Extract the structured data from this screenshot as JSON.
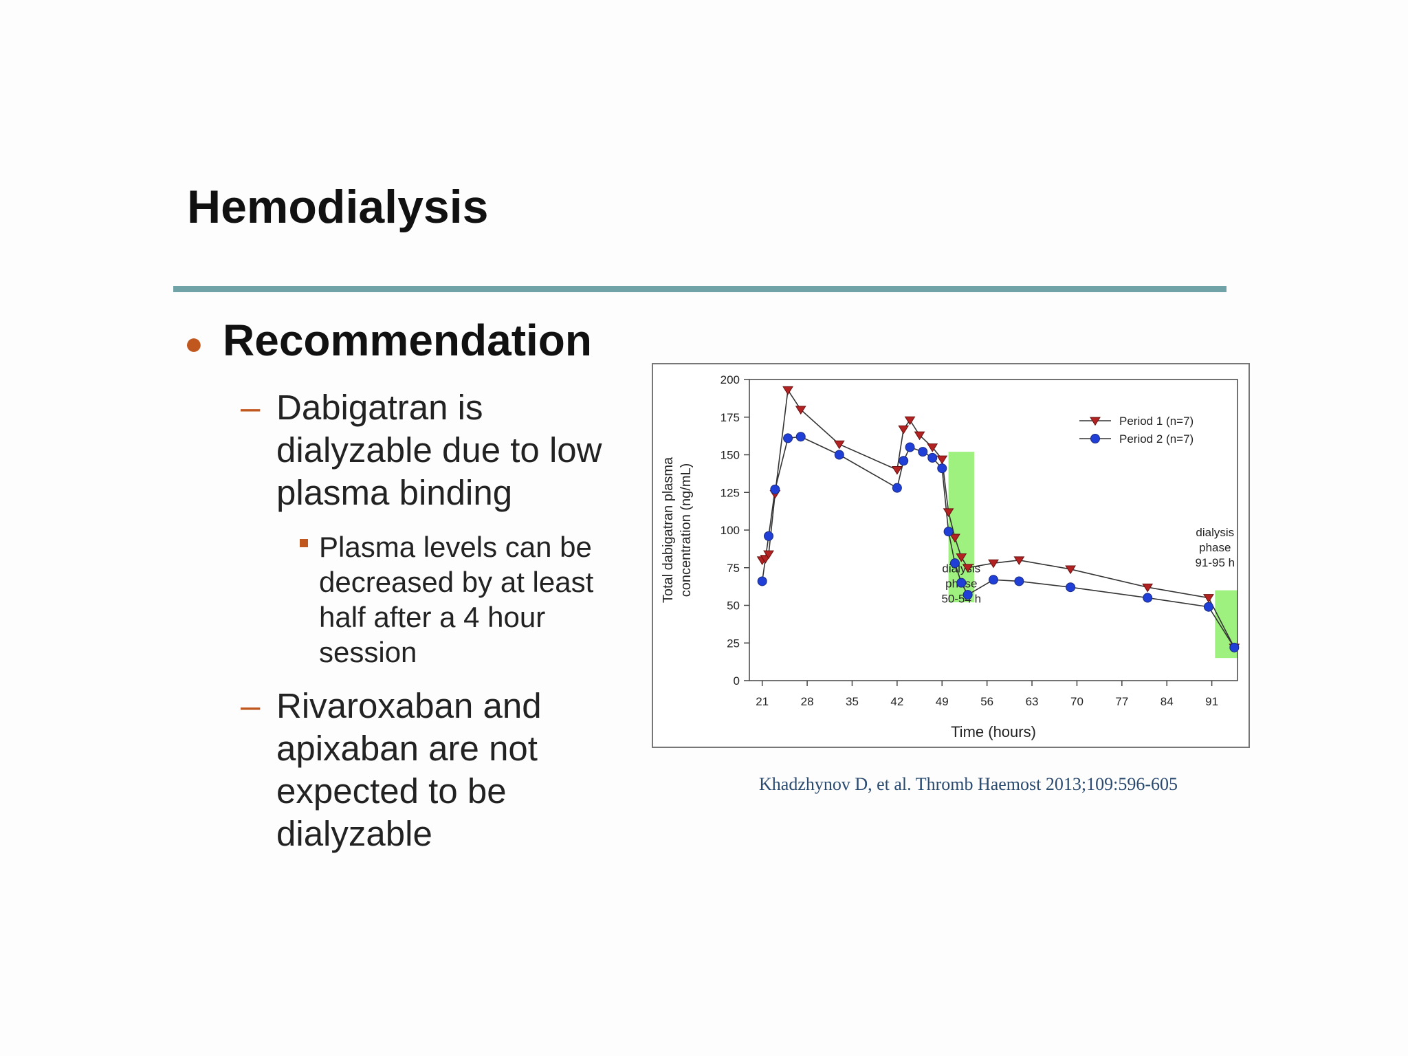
{
  "slide": {
    "title": "Hemodialysis",
    "bullet": "Recommendation",
    "item1_lines": [
      "Dabigatran  is",
      "dialyzable  due to low",
      "plasma binding"
    ],
    "sub_lines": [
      "Plasma levels can be",
      "decreased by at least",
      "half after a 4 hour",
      "session"
    ],
    "item2_lines": [
      "Rivaroxaban  and",
      "apixaban  are not",
      "expected  to be",
      "dialyzable"
    ],
    "citation": "Khadzhynov D, et al. Thromb Haemost 2013;109:596-605",
    "colors": {
      "rule": "#6fa3a8",
      "bullet": "#c0571f",
      "dialysis_band": "#9ef07f"
    }
  },
  "chart_data": {
    "type": "line",
    "xlabel": "Time (hours)",
    "ylabel_lines": [
      "Total dabigatran plasma",
      "concentration (ng/mL)"
    ],
    "xticks": [
      21,
      28,
      35,
      42,
      49,
      56,
      63,
      70,
      77,
      84,
      91
    ],
    "yticks": [
      0,
      25,
      50,
      75,
      100,
      125,
      150,
      175,
      200
    ],
    "xlim": [
      19,
      95
    ],
    "ylim": [
      0,
      200
    ],
    "legend_position": "top-right",
    "bands": [
      {
        "x0": 50,
        "x1": 54,
        "y0": 52,
        "y1": 152,
        "label_lines": [
          "dialysis",
          "phase",
          "50-54 h"
        ]
      },
      {
        "x0": 91.5,
        "x1": 95,
        "y0": 15,
        "y1": 60,
        "label_lines": [
          "dialysis",
          "phase",
          "91-95 h"
        ]
      }
    ],
    "series": [
      {
        "name": "Period 1 (n=7)",
        "color": "#b22222",
        "marker": "triangle-down",
        "points": [
          [
            21,
            80
          ],
          [
            21.5,
            81
          ],
          [
            22,
            84
          ],
          [
            23,
            124
          ],
          [
            25,
            193
          ],
          [
            27,
            180
          ],
          [
            33,
            157
          ],
          [
            42,
            140
          ],
          [
            43,
            167
          ],
          [
            44,
            173
          ],
          [
            45.5,
            163
          ],
          [
            47.5,
            155
          ],
          [
            49,
            147
          ],
          [
            50,
            112
          ],
          [
            51,
            95
          ],
          [
            52,
            82
          ],
          [
            53,
            75
          ],
          [
            57,
            78
          ],
          [
            61,
            80
          ],
          [
            69,
            74
          ],
          [
            81,
            62
          ],
          [
            90.5,
            55
          ],
          [
            94.5,
            22
          ]
        ]
      },
      {
        "name": "Period 2 (n=7)",
        "color": "#1f3fd6",
        "marker": "circle",
        "points": [
          [
            21,
            66
          ],
          [
            22,
            96
          ],
          [
            23,
            127
          ],
          [
            25,
            161
          ],
          [
            27,
            162
          ],
          [
            33,
            150
          ],
          [
            42,
            128
          ],
          [
            43,
            146
          ],
          [
            44,
            155
          ],
          [
            46,
            152
          ],
          [
            47.5,
            148
          ],
          [
            49,
            141
          ],
          [
            50,
            99
          ],
          [
            51,
            78
          ],
          [
            52,
            65
          ],
          [
            53,
            57
          ],
          [
            57,
            67
          ],
          [
            61,
            66
          ],
          [
            69,
            62
          ],
          [
            81,
            55
          ],
          [
            90.5,
            49
          ],
          [
            94.5,
            22
          ]
        ]
      }
    ]
  }
}
